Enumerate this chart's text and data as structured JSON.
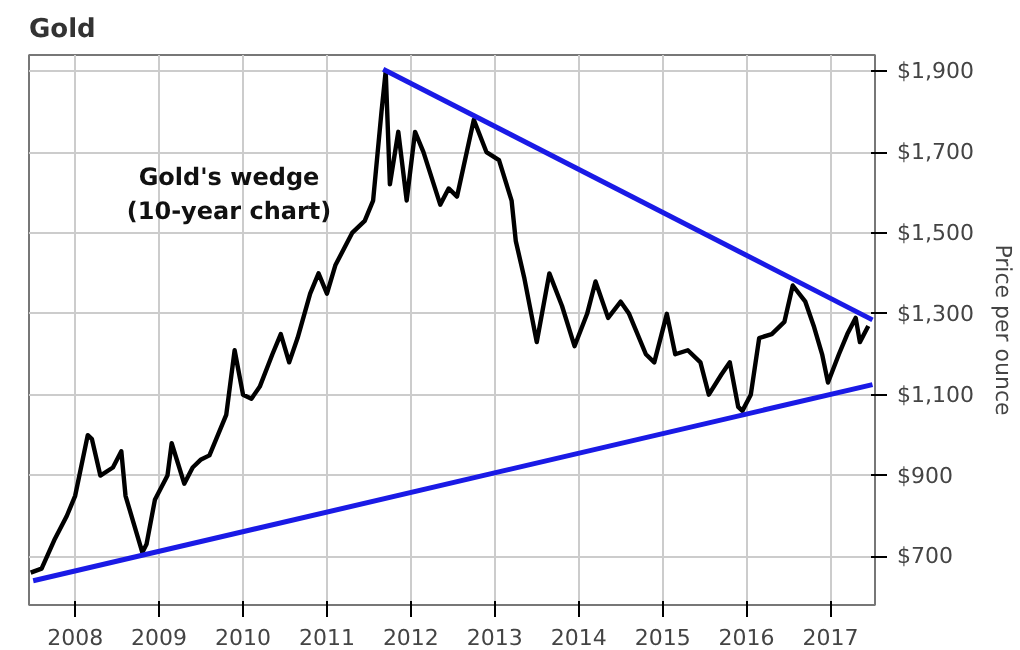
{
  "chart_data": {
    "type": "line",
    "title": "Gold",
    "ylabel": "Price per ounce",
    "annotations": [
      "Gold's wedge\n(10-year chart)"
    ],
    "xlim": [
      2007.45,
      2017.53
    ],
    "ylim": [
      580,
      1940
    ],
    "xticks": [
      2008,
      2009,
      2010,
      2011,
      2012,
      2013,
      2014,
      2015,
      2016,
      2017
    ],
    "yticks": [
      {
        "value": 700,
        "label": "$700"
      },
      {
        "value": 900,
        "label": "$900"
      },
      {
        "value": 1100,
        "label": "$1,100"
      },
      {
        "value": 1300,
        "label": "$1,300"
      },
      {
        "value": 1500,
        "label": "$1,500"
      },
      {
        "value": 1700,
        "label": "$1,700"
      },
      {
        "value": 1900,
        "label": "$1,900"
      }
    ],
    "grid": true,
    "marker": "none",
    "line_style": "solid",
    "series": [
      {
        "color": "#000000",
        "x": [
          2007.47,
          2007.6,
          2007.75,
          2007.9,
          2008.0,
          2008.15,
          2008.2,
          2008.3,
          2008.45,
          2008.55,
          2008.6,
          2008.7,
          2008.8,
          2008.85,
          2008.95,
          2009.1,
          2009.15,
          2009.3,
          2009.4,
          2009.5,
          2009.6,
          2009.7,
          2009.8,
          2009.9,
          2010.0,
          2010.1,
          2010.2,
          2010.35,
          2010.45,
          2010.55,
          2010.65,
          2010.8,
          2010.9,
          2011.0,
          2011.1,
          2011.3,
          2011.45,
          2011.55,
          2011.65,
          2011.7,
          2011.75,
          2011.85,
          2011.95,
          2012.05,
          2012.15,
          2012.35,
          2012.45,
          2012.55,
          2012.75,
          2012.9,
          2013.05,
          2013.2,
          2013.25,
          2013.35,
          2013.5,
          2013.65,
          2013.8,
          2013.95,
          2014.1,
          2014.2,
          2014.35,
          2014.5,
          2014.6,
          2014.8,
          2014.9,
          2015.05,
          2015.15,
          2015.3,
          2015.45,
          2015.55,
          2015.7,
          2015.8,
          2015.9,
          2015.95,
          2016.05,
          2016.15,
          2016.3,
          2016.45,
          2016.55,
          2016.7,
          2016.8,
          2016.9,
          2016.97,
          2017.1,
          2017.2,
          2017.3,
          2017.35,
          2017.45
        ],
        "values": [
          660,
          670,
          740,
          800,
          850,
          1000,
          990,
          900,
          920,
          960,
          850,
          780,
          710,
          730,
          840,
          900,
          980,
          880,
          920,
          940,
          950,
          1000,
          1050,
          1210,
          1100,
          1090,
          1120,
          1200,
          1250,
          1180,
          1240,
          1350,
          1400,
          1350,
          1420,
          1500,
          1530,
          1580,
          1800,
          1900,
          1620,
          1750,
          1580,
          1750,
          1700,
          1570,
          1610,
          1590,
          1780,
          1700,
          1680,
          1580,
          1480,
          1390,
          1230,
          1400,
          1320,
          1220,
          1300,
          1380,
          1290,
          1330,
          1300,
          1200,
          1180,
          1300,
          1200,
          1210,
          1180,
          1100,
          1150,
          1180,
          1070,
          1060,
          1100,
          1240,
          1250,
          1280,
          1370,
          1330,
          1270,
          1200,
          1130,
          1200,
          1250,
          1290,
          1230,
          1270
        ]
      },
      {
        "type": "line",
        "color": "#1a1ae6",
        "x": [
          2011.67,
          2017.5
        ],
        "values": [
          1905,
          1285
        ]
      },
      {
        "type": "line",
        "color": "#1a1ae6",
        "x": [
          2007.5,
          2017.5
        ],
        "values": [
          640,
          1125
        ]
      }
    ]
  }
}
